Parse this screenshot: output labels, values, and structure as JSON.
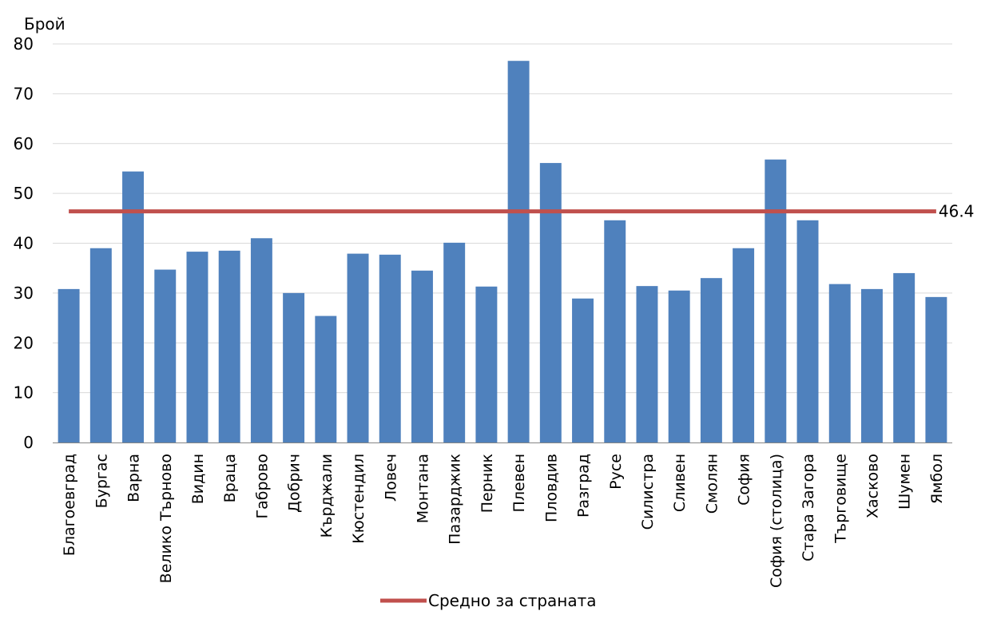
{
  "chart_data": {
    "type": "bar",
    "title": "",
    "xlabel": "",
    "ylabel": "Брой",
    "ylim": [
      0,
      80
    ],
    "yticks": [
      0,
      10,
      20,
      30,
      40,
      50,
      60,
      70,
      80
    ],
    "grid": true,
    "categories": [
      "Благоевград",
      "Бургас",
      "Варна",
      "Велико Търново",
      "Видин",
      "Враца",
      "Габрово",
      "Добрич",
      "Кърджали",
      "Кюстендил",
      "Ловеч",
      "Монтана",
      "Пазарджик",
      "Перник",
      "Плевен",
      "Пловдив",
      "Разград",
      "Русе",
      "Силистра",
      "Сливен",
      "Смолян",
      "София",
      "София (столица)",
      "Стара Загора",
      "Търговище",
      "Хасково",
      "Шумен",
      "Ямбол"
    ],
    "series": [
      {
        "values": [
          30.8,
          39.0,
          54.4,
          34.7,
          38.3,
          38.5,
          41.0,
          30.0,
          25.4,
          37.9,
          37.7,
          34.5,
          40.1,
          31.3,
          76.6,
          56.1,
          28.9,
          44.6,
          31.4,
          30.5,
          33.0,
          39.0,
          56.8,
          44.6,
          31.8,
          30.8,
          34.0,
          29.2
        ],
        "color": "#4f81bd"
      }
    ],
    "average": {
      "name": "Средно за страната",
      "value": 46.4,
      "label": "46.4",
      "color": "#c0504d"
    },
    "legend_position": "bottom"
  }
}
